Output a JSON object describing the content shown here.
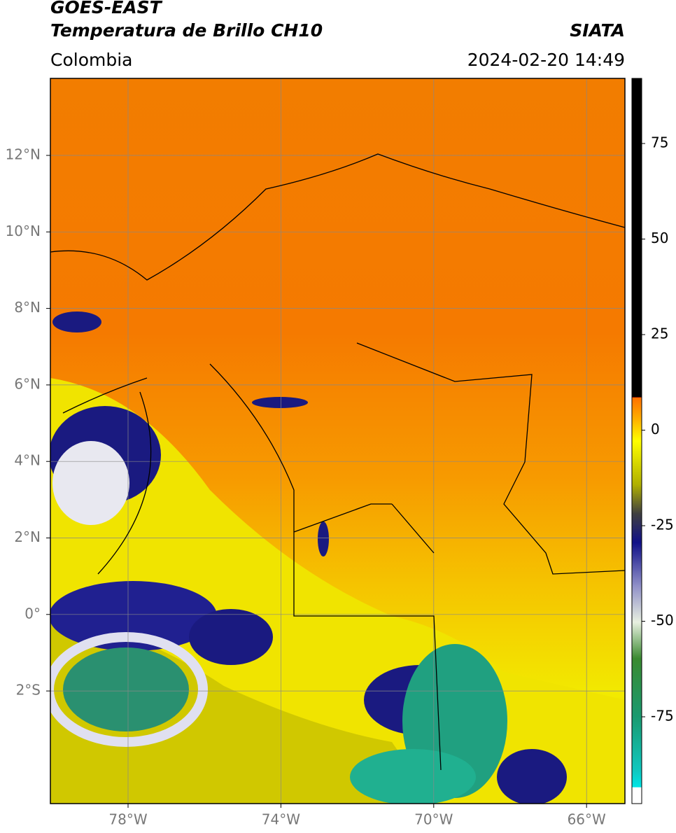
{
  "header": {
    "title": "GOES-EAST",
    "subtitle": "Temperatura de Brillo CH10",
    "source": "SIATA",
    "region": "Colombia",
    "datetime": "2024-02-20 14:49"
  },
  "map": {
    "lat_labels": [
      "12°N",
      "10°N",
      "8°N",
      "6°N",
      "4°N",
      "2°N",
      "0°",
      "2°S"
    ],
    "lon_labels": [
      "78°W",
      "74°W",
      "70°W",
      "66°W"
    ]
  },
  "colorbar": {
    "labels": [
      "75",
      "50",
      "25",
      "0",
      "-25",
      "-50",
      "-75"
    ]
  }
}
